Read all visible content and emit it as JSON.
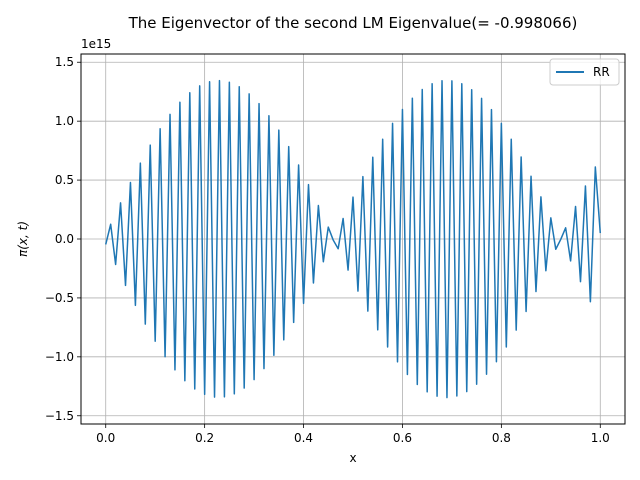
{
  "chart_data": {
    "type": "line",
    "title": "The Eigenvector of the second LM Eigenvalue(= -0.998066)",
    "xlabel": "x",
    "ylabel": "π(x, t)",
    "y_offset_text": "1e15",
    "xlim": [
      -0.05,
      1.05
    ],
    "ylim": [
      -1.57,
      1.57
    ],
    "x_ticks": [
      0.0,
      0.2,
      0.4,
      0.6,
      0.8,
      1.0
    ],
    "x_tick_labels": [
      "0.0",
      "0.2",
      "0.4",
      "0.6",
      "0.8",
      "1.0"
    ],
    "y_ticks": [
      -1.5,
      -1.0,
      -0.5,
      0.0,
      0.5,
      1.0,
      1.5
    ],
    "y_tick_labels": [
      "−1.5",
      "−1.0",
      "−0.5",
      "0.0",
      "0.5",
      "1.0",
      "1.5"
    ],
    "grid": true,
    "legend_position": "top-right",
    "series": [
      {
        "name": "RR",
        "color": "#1f77b4",
        "x_start": 0.0,
        "x_end": 1.0,
        "values": [
          -0.046,
          0.125,
          -0.216,
          0.307,
          -0.394,
          0.479,
          -0.563,
          0.644,
          -0.722,
          0.797,
          -0.868,
          0.936,
          -0.999,
          1.058,
          -1.111,
          1.16,
          -1.203,
          1.241,
          -1.273,
          1.299,
          -1.319,
          1.334,
          -1.342,
          1.344,
          -1.34,
          1.33,
          -1.314,
          1.292,
          -1.265,
          1.232,
          -1.193,
          1.149,
          -1.1,
          1.046,
          -0.987,
          0.924,
          -0.856,
          0.784,
          -0.708,
          0.628,
          -0.546,
          0.461,
          -0.373,
          0.284,
          -0.193,
          0.101,
          -0.009,
          -0.083,
          0.174,
          -0.264,
          0.355,
          -0.442,
          0.529,
          -0.612,
          0.694,
          -0.771,
          0.846,
          -0.916,
          0.981,
          -1.043,
          1.099,
          -1.15,
          1.195,
          -1.235,
          1.269,
          -1.297,
          1.318,
          -1.334,
          1.343,
          -1.346,
          1.342,
          -1.332,
          1.317,
          -1.295,
          1.267,
          -1.233,
          1.193,
          -1.148,
          1.098,
          -1.042,
          0.981,
          -0.916,
          0.846,
          -0.773,
          0.696,
          -0.615,
          0.532,
          -0.446,
          0.358,
          -0.269,
          0.179,
          -0.087,
          -0.004,
          0.095,
          -0.186,
          0.276,
          -0.362,
          0.45,
          -0.532,
          0.611,
          0.05
        ]
      }
    ]
  }
}
